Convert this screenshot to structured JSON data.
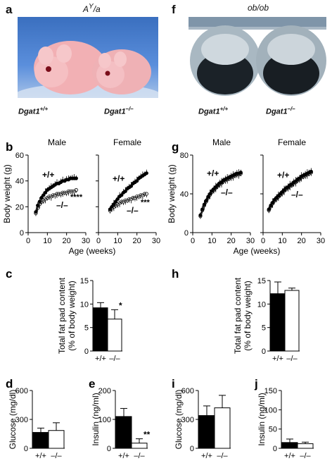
{
  "panels": {
    "a": {
      "letter": "a",
      "title_base": "A",
      "title_sup": "Y",
      "title_rest": "/a",
      "geno_left_base": "Dgat1",
      "geno_left_sup": "+/+",
      "geno_right_base": "Dgat1",
      "geno_right_sup": "–/–",
      "photo_icon": "mouse-photo"
    },
    "f": {
      "letter": "f",
      "title": "ob/ob",
      "geno_left_base": "Dgat1",
      "geno_left_sup": "+/+",
      "geno_right_base": "Dgat1",
      "geno_right_sup": "–/–",
      "photo_icon": "mouse-photo"
    }
  },
  "chart_data": [
    {
      "id": "b",
      "letter": "b",
      "type": "line",
      "ylabel": "Body weight (g)",
      "xlabel": "Age (weeks)",
      "ylim": [
        0,
        60
      ],
      "yticks": [
        0,
        20,
        40,
        60
      ],
      "xlim": [
        0,
        30
      ],
      "xticks": [
        0,
        10,
        20,
        30
      ],
      "subplots": [
        {
          "title": "Male",
          "label_wt": "+/+",
          "label_ko": "–/–",
          "sig": "****",
          "x": [
            4,
            5,
            6,
            7,
            8,
            9,
            10,
            11,
            12,
            13,
            14,
            15,
            16,
            17,
            18,
            19,
            20,
            21,
            22,
            23,
            24,
            25
          ],
          "series": [
            {
              "genotype": "+/+",
              "values": [
                16,
                21,
                24,
                27,
                29,
                31,
                33,
                34,
                35,
                36,
                37,
                38,
                38,
                39,
                40,
                40,
                41,
                41,
                42,
                42,
                42,
                42
              ]
            },
            {
              "genotype": "–/–",
              "values": [
                15,
                19,
                22,
                24,
                25,
                26,
                27,
                28,
                28,
                29,
                29,
                30,
                30,
                30,
                31,
                31,
                31,
                32,
                32,
                32,
                32,
                33
              ]
            }
          ]
        },
        {
          "title": "Female",
          "label_wt": "+/+",
          "label_ko": "–/–",
          "sig": "***",
          "x": [
            6,
            7,
            8,
            9,
            10,
            11,
            12,
            13,
            14,
            15,
            16,
            17,
            18,
            19,
            20,
            21,
            22,
            23,
            24,
            25
          ],
          "series": [
            {
              "genotype": "+/+",
              "values": [
                18,
                20,
                22,
                24,
                26,
                28,
                29,
                31,
                32,
                34,
                35,
                36,
                38,
                39,
                40,
                42,
                43,
                44,
                45,
                46
              ]
            },
            {
              "genotype": "–/–",
              "values": [
                17,
                19,
                20,
                21,
                22,
                23,
                24,
                24,
                25,
                25,
                26,
                26,
                27,
                27,
                28,
                28,
                29,
                29,
                30,
                30
              ]
            }
          ]
        }
      ]
    },
    {
      "id": "g",
      "letter": "g",
      "type": "line",
      "ylabel": "Body weight (g)",
      "xlabel": "Age (weeks)",
      "ylim": [
        0,
        80
      ],
      "yticks": [
        0,
        40,
        80
      ],
      "xlim": [
        0,
        30
      ],
      "xticks": [
        0,
        10,
        20,
        30
      ],
      "subplots": [
        {
          "title": "Male",
          "label_wt": "+/+",
          "label_ko": "–/–",
          "sig": "",
          "x": [
            4,
            5,
            6,
            7,
            8,
            9,
            10,
            11,
            12,
            13,
            14,
            15,
            16,
            17,
            18,
            19,
            20,
            21,
            22,
            23,
            24,
            25
          ],
          "series": [
            {
              "genotype": "+/+",
              "values": [
                18,
                24,
                29,
                33,
                37,
                40,
                43,
                45,
                47,
                49,
                51,
                52,
                54,
                55,
                56,
                57,
                58,
                59,
                60,
                61,
                61,
                62
              ]
            },
            {
              "genotype": "–/–",
              "values": [
                17,
                23,
                28,
                32,
                36,
                39,
                42,
                44,
                46,
                48,
                50,
                51,
                53,
                54,
                55,
                56,
                57,
                58,
                59,
                60,
                60,
                61
              ]
            }
          ]
        },
        {
          "title": "Female",
          "label_wt": "+/+",
          "label_ko": "–/–",
          "sig": "",
          "x": [
            3,
            4,
            5,
            6,
            7,
            8,
            9,
            10,
            11,
            12,
            13,
            14,
            15,
            16,
            17,
            18,
            19,
            20,
            21,
            22,
            23,
            24,
            25
          ],
          "series": [
            {
              "genotype": "+/+",
              "values": [
                24,
                28,
                31,
                34,
                36,
                38,
                40,
                42,
                44,
                46,
                47,
                49,
                50,
                52,
                53,
                55,
                56,
                58,
                59,
                60,
                61,
                62,
                63
              ]
            },
            {
              "genotype": "–/–",
              "values": [
                23,
                27,
                30,
                33,
                35,
                37,
                39,
                41,
                43,
                45,
                46,
                48,
                49,
                51,
                52,
                54,
                55,
                57,
                58,
                59,
                60,
                61,
                62
              ]
            }
          ]
        }
      ]
    },
    {
      "id": "c",
      "letter": "c",
      "type": "bar",
      "ylabel_lines": [
        "Total fat pad content",
        "(% of body weight)"
      ],
      "categories": [
        "+/+",
        "–/–"
      ],
      "values": [
        9.2,
        6.8
      ],
      "errors": [
        1.1,
        2.0
      ],
      "sig": [
        "",
        "*"
      ],
      "ylim": [
        0,
        15
      ],
      "yticks": [
        0,
        5,
        10,
        15
      ]
    },
    {
      "id": "h",
      "letter": "h",
      "type": "bar",
      "ylabel_lines": [
        "Total fat pad content",
        "(% of body weight)"
      ],
      "categories": [
        "+/+",
        "–/–"
      ],
      "values": [
        12.2,
        12.9
      ],
      "errors": [
        2.5,
        0.5
      ],
      "sig": [
        "",
        ""
      ],
      "ylim": [
        0,
        15
      ],
      "yticks": [
        0,
        5,
        10,
        15
      ]
    },
    {
      "id": "d",
      "letter": "d",
      "type": "bar",
      "ylabel_lines": [
        "Glucose (mg/dl)"
      ],
      "categories": [
        "+/+",
        "–/–"
      ],
      "values": [
        165,
        185
      ],
      "errors": [
        45,
        80
      ],
      "sig": [
        "",
        ""
      ],
      "ylim": [
        0,
        600
      ],
      "yticks": [
        0,
        300,
        600
      ]
    },
    {
      "id": "e",
      "letter": "e",
      "type": "bar",
      "ylabel_lines": [
        "Insulin (ng/ml)"
      ],
      "categories": [
        "+/+",
        "–/–"
      ],
      "values": [
        110,
        18
      ],
      "errors": [
        28,
        15
      ],
      "sig": [
        "",
        "**"
      ],
      "ylim": [
        0,
        200
      ],
      "yticks": [
        0,
        100,
        200
      ]
    },
    {
      "id": "i",
      "letter": "i",
      "type": "bar",
      "ylabel_lines": [
        "Glucose (mg/dl)"
      ],
      "categories": [
        "+/+",
        "–/–"
      ],
      "values": [
        340,
        420
      ],
      "errors": [
        100,
        130
      ],
      "sig": [
        "",
        ""
      ],
      "ylim": [
        0,
        600
      ],
      "yticks": [
        0,
        300,
        600
      ]
    },
    {
      "id": "j",
      "letter": "j",
      "type": "bar",
      "ylabel_lines": [
        "Insulin (ng/ml)"
      ],
      "categories": [
        "+/+",
        "–/–"
      ],
      "values": [
        15,
        12
      ],
      "errors": [
        9,
        4
      ],
      "sig": [
        "",
        ""
      ],
      "ylim": [
        0,
        150
      ],
      "yticks": [
        0,
        50,
        100,
        150
      ]
    }
  ]
}
